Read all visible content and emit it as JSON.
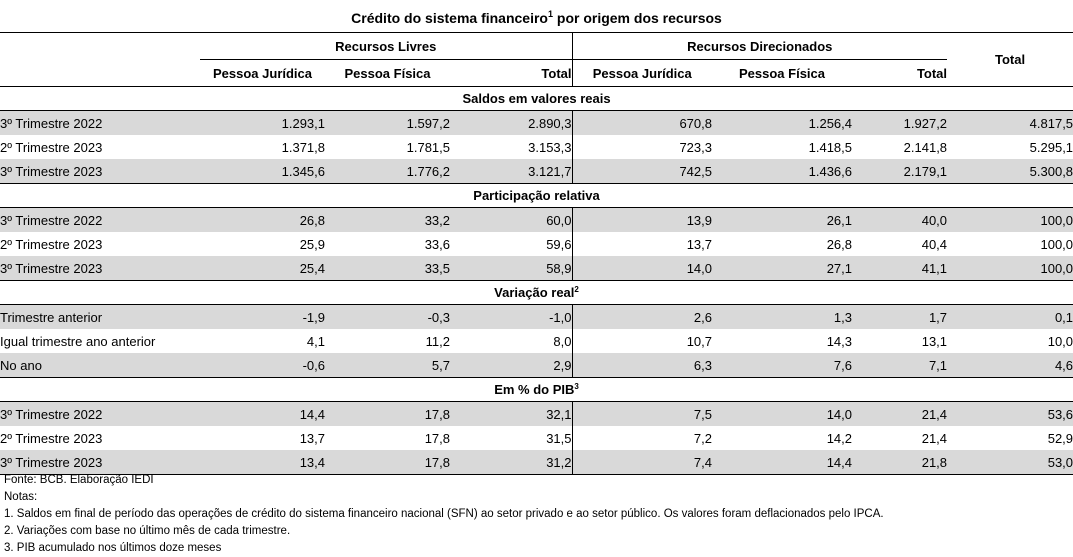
{
  "title": {
    "text": "Crédito do sistema financeiro",
    "sup": "1",
    "suffix": " por origem dos recursos"
  },
  "groups": {
    "livres": "Recursos Livres",
    "direcionados": "Recursos Direcionados",
    "total": "Total"
  },
  "columns": {
    "pj1": "Pessoa Jurídica",
    "pf1": "Pessoa Física",
    "tot1": "Total",
    "pj2": "Pessoa Jurídica",
    "pf2": "Pessoa Física",
    "tot2": "Total"
  },
  "sections": [
    {
      "title": "Saldos em valores reais",
      "sup": "",
      "rows": [
        {
          "label": "3º Trimestre 2022",
          "values": [
            "1.293,1",
            "1.597,2",
            "2.890,3",
            "670,8",
            "1.256,4",
            "1.927,2",
            "4.817,5"
          ]
        },
        {
          "label": "2º Trimestre 2023",
          "values": [
            "1.371,8",
            "1.781,5",
            "3.153,3",
            "723,3",
            "1.418,5",
            "2.141,8",
            "5.295,1"
          ]
        },
        {
          "label": "3º Trimestre 2023",
          "values": [
            "1.345,6",
            "1.776,2",
            "3.121,7",
            "742,5",
            "1.436,6",
            "2.179,1",
            "5.300,8"
          ]
        }
      ]
    },
    {
      "title": "Participação relativa",
      "sup": "",
      "rows": [
        {
          "label": "3º Trimestre 2022",
          "values": [
            "26,8",
            "33,2",
            "60,0",
            "13,9",
            "26,1",
            "40,0",
            "100,0"
          ]
        },
        {
          "label": "2º Trimestre 2023",
          "values": [
            "25,9",
            "33,6",
            "59,6",
            "13,7",
            "26,8",
            "40,4",
            "100,0"
          ]
        },
        {
          "label": "3º Trimestre 2023",
          "values": [
            "25,4",
            "33,5",
            "58,9",
            "14,0",
            "27,1",
            "41,1",
            "100,0"
          ]
        }
      ]
    },
    {
      "title": "Variação real",
      "sup": "2",
      "rows": [
        {
          "label": "Trimestre anterior",
          "values": [
            "-1,9",
            "-0,3",
            "-1,0",
            "2,6",
            "1,3",
            "1,7",
            "0,1"
          ]
        },
        {
          "label": "Igual trimestre ano anterior",
          "values": [
            "4,1",
            "11,2",
            "8,0",
            "10,7",
            "14,3",
            "13,1",
            "10,0"
          ]
        },
        {
          "label": "No ano",
          "values": [
            "-0,6",
            "5,7",
            "2,9",
            "6,3",
            "7,6",
            "7,1",
            "4,6"
          ]
        }
      ]
    },
    {
      "title": "Em % do PIB",
      "sup": "3",
      "rows": [
        {
          "label": "3º Trimestre 2022",
          "values": [
            "14,4",
            "17,8",
            "32,1",
            "7,5",
            "14,0",
            "21,4",
            "53,6"
          ]
        },
        {
          "label": "2º Trimestre 2023",
          "values": [
            "13,7",
            "17,8",
            "31,5",
            "7,2",
            "14,2",
            "21,4",
            "52,9"
          ]
        },
        {
          "label": "3º Trimestre 2023",
          "values": [
            "13,4",
            "17,8",
            "31,2",
            "7,4",
            "14,4",
            "21,8",
            "53,0"
          ]
        }
      ]
    }
  ],
  "notes": [
    "Fonte: BCB. Elaboração IEDI",
    "Notas:",
    "1. Saldos em final de período das operações de crédito do sistema financeiro nacional (SFN) ao setor privado e ao setor público. Os valores foram deflacionados pelo IPCA.",
    "2.  Variações com base no último mês de cada trimestre.",
    "3. PIB acumulado nos últimos doze meses"
  ],
  "colors": {
    "shade": "#d9d9d9",
    "line": "#000000"
  }
}
